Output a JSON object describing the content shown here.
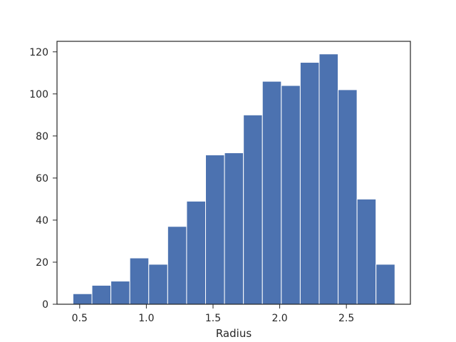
{
  "chart_data": {
    "type": "bar",
    "xlabel": "Radius",
    "ylabel": "",
    "title": "",
    "bin_edges": [
      0.45,
      0.592,
      0.734,
      0.876,
      1.018,
      1.16,
      1.302,
      1.444,
      1.586,
      1.728,
      1.87,
      2.012,
      2.154,
      2.296,
      2.438,
      2.58,
      2.722,
      2.864
    ],
    "values": [
      5,
      9,
      11,
      22,
      19,
      37,
      49,
      71,
      72,
      90,
      106,
      104,
      115,
      119,
      102,
      50,
      19
    ],
    "xlim": [
      0.33,
      2.98
    ],
    "ylim": [
      0,
      125
    ],
    "x_ticks": [
      0.5,
      1.0,
      1.5,
      2.0,
      2.5
    ],
    "x_tick_labels": [
      "0.5",
      "1.0",
      "1.5",
      "2.0",
      "2.5"
    ],
    "y_ticks": [
      0,
      20,
      40,
      60,
      80,
      100,
      120
    ],
    "y_tick_labels": [
      "0",
      "20",
      "40",
      "60",
      "80",
      "100",
      "120"
    ],
    "bar_color": "#4c72b0",
    "edge_color": "#ffffff",
    "grid": false
  }
}
